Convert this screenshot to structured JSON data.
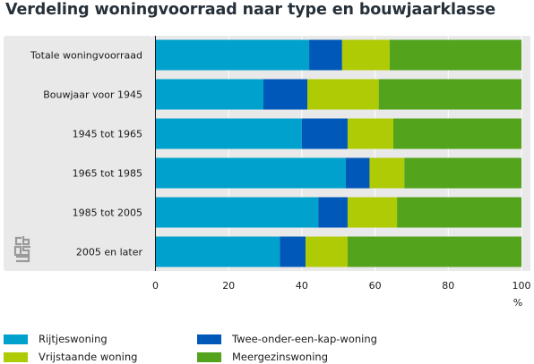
{
  "title": "Verdeling woningvoorraad naar type en bouwjaarklasse",
  "logo": "cbs",
  "chart_data": {
    "type": "bar",
    "orientation": "horizontal",
    "stacked": true,
    "categories": [
      "Totale woningvoorraad",
      "Bouwjaar voor 1945",
      "1945 tot 1965",
      "1965 tot 1985",
      "1985 tot 2005",
      "2005 en later"
    ],
    "series": [
      {
        "name": "Rijtjeswoning",
        "color": "#00a1cd",
        "values": [
          42,
          29.5,
          40,
          52,
          44.5,
          34
        ]
      },
      {
        "name": "Twee-onder-een-kap-woning",
        "color": "#0058b8",
        "values": [
          9,
          12,
          12.5,
          6.5,
          8,
          7
        ]
      },
      {
        "name": "Vrijstaande woning",
        "color": "#afcb05",
        "values": [
          13,
          19.5,
          12.5,
          9.5,
          13.5,
          11.5
        ]
      },
      {
        "name": "Meergezinswoning",
        "color": "#53a31d",
        "values": [
          36,
          39,
          35,
          32,
          34,
          47.5
        ]
      }
    ],
    "xlim": [
      0,
      100
    ],
    "xticks": [
      0,
      20,
      40,
      60,
      80,
      100
    ],
    "xlabel": "%",
    "grid": true,
    "legend_position": "bottom"
  }
}
